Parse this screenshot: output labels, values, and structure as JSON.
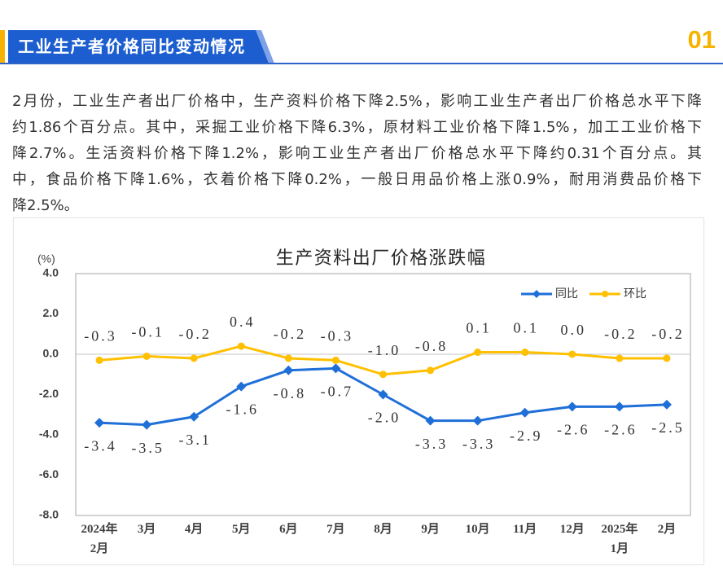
{
  "header": {
    "title": "工业生产者价格同比变动情况",
    "number": "01"
  },
  "body": {
    "lines": [
      "2月份，工业生产者出厂价格中，生产资料价格下降2.5%，影响工业生产者出厂价格总水平下降",
      "约1.86个百分点。其中，采掘工业价格下降6.3%，原材料工业价格下降1.5%，加工工业价格下",
      "降2.7%。生活资料价格下降1.2%，影响工业生产者出厂价格总水平下降约0.31个百分点。其",
      "中，食品价格下降1.6%，衣着价格下降0.2%，一般日用品价格上涨0.9%，耐用消费品价格下",
      "降2.5%。"
    ]
  },
  "colors": {
    "banner_blue": "#1c5ecf",
    "accent_yellow": "#f6b400"
  },
  "chart_data": {
    "type": "line",
    "title": "生产资料出厂价格涨跌幅",
    "xlabel": "",
    "ylabel": "(%)",
    "ylim": [
      -8,
      4
    ],
    "yticks": [
      4.0,
      2.0,
      0.0,
      -2.0,
      -4.0,
      -6.0,
      -8.0
    ],
    "grid": false,
    "zero_line": true,
    "legend": "top-right",
    "data_labels": true,
    "categories": [
      "2024年2月",
      "3月",
      "4月",
      "5月",
      "6月",
      "7月",
      "8月",
      "9月",
      "10月",
      "11月",
      "12月",
      "2025年1月",
      "2月"
    ],
    "series": [
      {
        "name": "同比",
        "color": "#1f6fd8",
        "marker": "diamond",
        "label_position": "below",
        "values": [
          -3.4,
          -3.5,
          -3.1,
          -1.6,
          -0.8,
          -0.7,
          -2.0,
          -3.3,
          -3.3,
          -2.9,
          -2.6,
          -2.6,
          -2.5
        ]
      },
      {
        "name": "环比",
        "color": "#ffc000",
        "marker": "circle",
        "label_position": "above",
        "values": [
          -0.3,
          -0.1,
          -0.2,
          0.4,
          -0.2,
          -0.3,
          -1.0,
          -0.8,
          0.1,
          0.1,
          0.0,
          -0.2,
          -0.2
        ]
      }
    ]
  }
}
